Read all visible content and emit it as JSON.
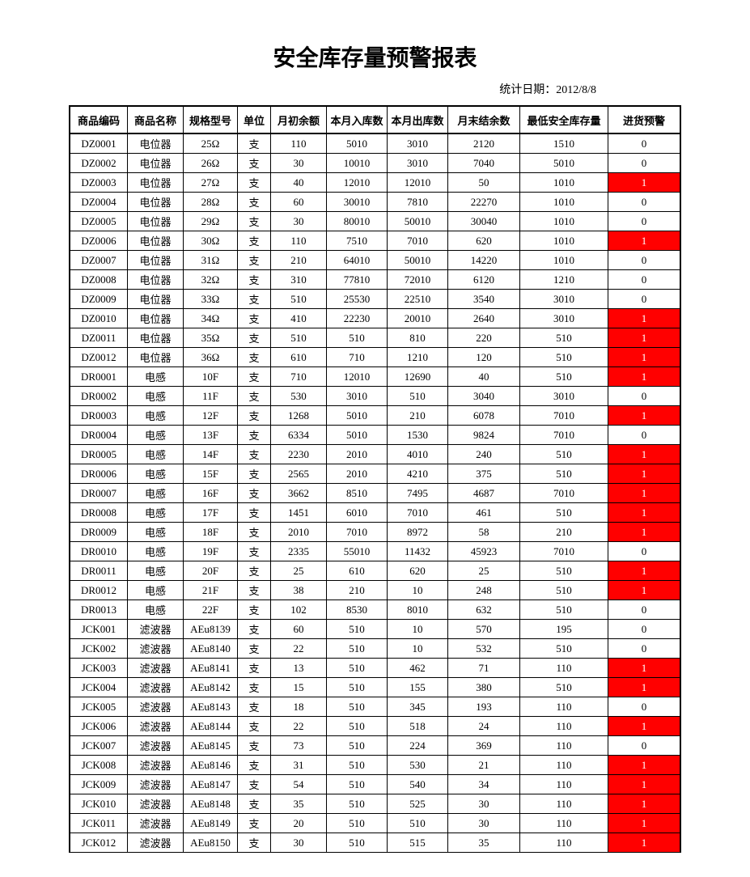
{
  "title": "安全库存量预警报表",
  "subtitle_prefix": "统计日期：",
  "subtitle_date": "2012/8/8",
  "columns": [
    "商品编码",
    "商品名称",
    "规格型号",
    "单位",
    "月初余额",
    "本月入库数",
    "本月出库数",
    "月末结余数",
    "最低安全库存量",
    "进货预警"
  ],
  "warn_colors": {
    "bg": "#ff0000",
    "fg": "#ffffff"
  },
  "rows": [
    {
      "code": "DZ0001",
      "name": "电位器",
      "spec": "25Ω",
      "unit": "支",
      "begin": "110",
      "in": "5010",
      "out": "3010",
      "end": "2120",
      "min": "1510",
      "warn": "0"
    },
    {
      "code": "DZ0002",
      "name": "电位器",
      "spec": "26Ω",
      "unit": "支",
      "begin": "30",
      "in": "10010",
      "out": "3010",
      "end": "7040",
      "min": "5010",
      "warn": "0"
    },
    {
      "code": "DZ0003",
      "name": "电位器",
      "spec": "27Ω",
      "unit": "支",
      "begin": "40",
      "in": "12010",
      "out": "12010",
      "end": "50",
      "min": "1010",
      "warn": "1"
    },
    {
      "code": "DZ0004",
      "name": "电位器",
      "spec": "28Ω",
      "unit": "支",
      "begin": "60",
      "in": "30010",
      "out": "7810",
      "end": "22270",
      "min": "1010",
      "warn": "0"
    },
    {
      "code": "DZ0005",
      "name": "电位器",
      "spec": "29Ω",
      "unit": "支",
      "begin": "30",
      "in": "80010",
      "out": "50010",
      "end": "30040",
      "min": "1010",
      "warn": "0"
    },
    {
      "code": "DZ0006",
      "name": "电位器",
      "spec": "30Ω",
      "unit": "支",
      "begin": "110",
      "in": "7510",
      "out": "7010",
      "end": "620",
      "min": "1010",
      "warn": "1"
    },
    {
      "code": "DZ0007",
      "name": "电位器",
      "spec": "31Ω",
      "unit": "支",
      "begin": "210",
      "in": "64010",
      "out": "50010",
      "end": "14220",
      "min": "1010",
      "warn": "0"
    },
    {
      "code": "DZ0008",
      "name": "电位器",
      "spec": "32Ω",
      "unit": "支",
      "begin": "310",
      "in": "77810",
      "out": "72010",
      "end": "6120",
      "min": "1210",
      "warn": "0"
    },
    {
      "code": "DZ0009",
      "name": "电位器",
      "spec": "33Ω",
      "unit": "支",
      "begin": "510",
      "in": "25530",
      "out": "22510",
      "end": "3540",
      "min": "3010",
      "warn": "0"
    },
    {
      "code": "DZ0010",
      "name": "电位器",
      "spec": "34Ω",
      "unit": "支",
      "begin": "410",
      "in": "22230",
      "out": "20010",
      "end": "2640",
      "min": "3010",
      "warn": "1"
    },
    {
      "code": "DZ0011",
      "name": "电位器",
      "spec": "35Ω",
      "unit": "支",
      "begin": "510",
      "in": "510",
      "out": "810",
      "end": "220",
      "min": "510",
      "warn": "1"
    },
    {
      "code": "DZ0012",
      "name": "电位器",
      "spec": "36Ω",
      "unit": "支",
      "begin": "610",
      "in": "710",
      "out": "1210",
      "end": "120",
      "min": "510",
      "warn": "1"
    },
    {
      "code": "DR0001",
      "name": "电感",
      "spec": "10F",
      "unit": "支",
      "begin": "710",
      "in": "12010",
      "out": "12690",
      "end": "40",
      "min": "510",
      "warn": "1"
    },
    {
      "code": "DR0002",
      "name": "电感",
      "spec": "11F",
      "unit": "支",
      "begin": "530",
      "in": "3010",
      "out": "510",
      "end": "3040",
      "min": "3010",
      "warn": "0"
    },
    {
      "code": "DR0003",
      "name": "电感",
      "spec": "12F",
      "unit": "支",
      "begin": "1268",
      "in": "5010",
      "out": "210",
      "end": "6078",
      "min": "7010",
      "warn": "1"
    },
    {
      "code": "DR0004",
      "name": "电感",
      "spec": "13F",
      "unit": "支",
      "begin": "6334",
      "in": "5010",
      "out": "1530",
      "end": "9824",
      "min": "7010",
      "warn": "0"
    },
    {
      "code": "DR0005",
      "name": "电感",
      "spec": "14F",
      "unit": "支",
      "begin": "2230",
      "in": "2010",
      "out": "4010",
      "end": "240",
      "min": "510",
      "warn": "1"
    },
    {
      "code": "DR0006",
      "name": "电感",
      "spec": "15F",
      "unit": "支",
      "begin": "2565",
      "in": "2010",
      "out": "4210",
      "end": "375",
      "min": "510",
      "warn": "1"
    },
    {
      "code": "DR0007",
      "name": "电感",
      "spec": "16F",
      "unit": "支",
      "begin": "3662",
      "in": "8510",
      "out": "7495",
      "end": "4687",
      "min": "7010",
      "warn": "1"
    },
    {
      "code": "DR0008",
      "name": "电感",
      "spec": "17F",
      "unit": "支",
      "begin": "1451",
      "in": "6010",
      "out": "7010",
      "end": "461",
      "min": "510",
      "warn": "1"
    },
    {
      "code": "DR0009",
      "name": "电感",
      "spec": "18F",
      "unit": "支",
      "begin": "2010",
      "in": "7010",
      "out": "8972",
      "end": "58",
      "min": "210",
      "warn": "1"
    },
    {
      "code": "DR0010",
      "name": "电感",
      "spec": "19F",
      "unit": "支",
      "begin": "2335",
      "in": "55010",
      "out": "11432",
      "end": "45923",
      "min": "7010",
      "warn": "0"
    },
    {
      "code": "DR0011",
      "name": "电感",
      "spec": "20F",
      "unit": "支",
      "begin": "25",
      "in": "610",
      "out": "620",
      "end": "25",
      "min": "510",
      "warn": "1"
    },
    {
      "code": "DR0012",
      "name": "电感",
      "spec": "21F",
      "unit": "支",
      "begin": "38",
      "in": "210",
      "out": "10",
      "end": "248",
      "min": "510",
      "warn": "1"
    },
    {
      "code": "DR0013",
      "name": "电感",
      "spec": "22F",
      "unit": "支",
      "begin": "102",
      "in": "8530",
      "out": "8010",
      "end": "632",
      "min": "510",
      "warn": "0"
    },
    {
      "code": "JCK001",
      "name": "滤波器",
      "spec": "AEu8139",
      "unit": "支",
      "begin": "60",
      "in": "510",
      "out": "10",
      "end": "570",
      "min": "195",
      "warn": "0"
    },
    {
      "code": "JCK002",
      "name": "滤波器",
      "spec": "AEu8140",
      "unit": "支",
      "begin": "22",
      "in": "510",
      "out": "10",
      "end": "532",
      "min": "510",
      "warn": "0"
    },
    {
      "code": "JCK003",
      "name": "滤波器",
      "spec": "AEu8141",
      "unit": "支",
      "begin": "13",
      "in": "510",
      "out": "462",
      "end": "71",
      "min": "110",
      "warn": "1"
    },
    {
      "code": "JCK004",
      "name": "滤波器",
      "spec": "AEu8142",
      "unit": "支",
      "begin": "15",
      "in": "510",
      "out": "155",
      "end": "380",
      "min": "510",
      "warn": "1"
    },
    {
      "code": "JCK005",
      "name": "滤波器",
      "spec": "AEu8143",
      "unit": "支",
      "begin": "18",
      "in": "510",
      "out": "345",
      "end": "193",
      "min": "110",
      "warn": "0"
    },
    {
      "code": "JCK006",
      "name": "滤波器",
      "spec": "AEu8144",
      "unit": "支",
      "begin": "22",
      "in": "510",
      "out": "518",
      "end": "24",
      "min": "110",
      "warn": "1"
    },
    {
      "code": "JCK007",
      "name": "滤波器",
      "spec": "AEu8145",
      "unit": "支",
      "begin": "73",
      "in": "510",
      "out": "224",
      "end": "369",
      "min": "110",
      "warn": "0"
    },
    {
      "code": "JCK008",
      "name": "滤波器",
      "spec": "AEu8146",
      "unit": "支",
      "begin": "31",
      "in": "510",
      "out": "530",
      "end": "21",
      "min": "110",
      "warn": "1"
    },
    {
      "code": "JCK009",
      "name": "滤波器",
      "spec": "AEu8147",
      "unit": "支",
      "begin": "54",
      "in": "510",
      "out": "540",
      "end": "34",
      "min": "110",
      "warn": "1"
    },
    {
      "code": "JCK010",
      "name": "滤波器",
      "spec": "AEu8148",
      "unit": "支",
      "begin": "35",
      "in": "510",
      "out": "525",
      "end": "30",
      "min": "110",
      "warn": "1"
    },
    {
      "code": "JCK011",
      "name": "滤波器",
      "spec": "AEu8149",
      "unit": "支",
      "begin": "20",
      "in": "510",
      "out": "510",
      "end": "30",
      "min": "110",
      "warn": "1"
    },
    {
      "code": "JCK012",
      "name": "滤波器",
      "spec": "AEu8150",
      "unit": "支",
      "begin": "30",
      "in": "510",
      "out": "515",
      "end": "35",
      "min": "110",
      "warn": "1"
    }
  ]
}
